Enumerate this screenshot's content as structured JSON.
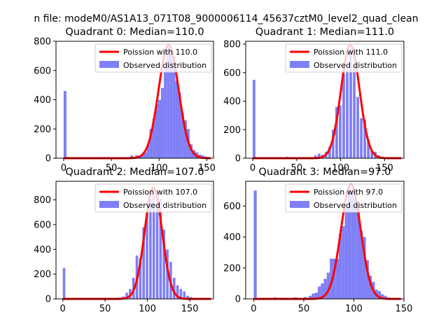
{
  "figure": {
    "title": "n file: modeM0/AS1A13_071T08_9000006114_45637cztM0_level2_quad_clean"
  },
  "colors": {
    "bars": "#7f7ff7",
    "poisson": "#ff0000",
    "axes": "#000000"
  },
  "chart_data": [
    {
      "type": "bar",
      "title": "Quadrant 0: Median=110.0",
      "xlim": [
        -8,
        157
      ],
      "ylim": [
        0,
        800
      ],
      "xticks": [
        0,
        50,
        100,
        150
      ],
      "yticks": [
        0,
        200,
        400,
        600,
        800
      ],
      "legend": {
        "placement": "top-right",
        "line_label": "Poission with 110.0",
        "bar_label": "Observed distribution"
      },
      "poisson_mean": 110.0,
      "poisson_peak": 775,
      "bins": [
        {
          "x": 0,
          "y": 460
        },
        {
          "x": 3,
          "y": 8
        },
        {
          "x": 6,
          "y": 7
        },
        {
          "x": 10,
          "y": 6
        },
        {
          "x": 20,
          "y": 6
        },
        {
          "x": 30,
          "y": 7
        },
        {
          "x": 40,
          "y": 8
        },
        {
          "x": 50,
          "y": 6
        },
        {
          "x": 60,
          "y": 8
        },
        {
          "x": 65,
          "y": 7
        },
        {
          "x": 70,
          "y": 18
        },
        {
          "x": 75,
          "y": 20
        },
        {
          "x": 78,
          "y": 12
        },
        {
          "x": 81,
          "y": 30
        },
        {
          "x": 84,
          "y": 40
        },
        {
          "x": 87,
          "y": 90
        },
        {
          "x": 90,
          "y": 200
        },
        {
          "x": 93,
          "y": 270
        },
        {
          "x": 96,
          "y": 370
        },
        {
          "x": 99,
          "y": 400
        },
        {
          "x": 102,
          "y": 480
        },
        {
          "x": 105,
          "y": 620
        },
        {
          "x": 108,
          "y": 760
        },
        {
          "x": 111,
          "y": 720
        },
        {
          "x": 114,
          "y": 700
        },
        {
          "x": 117,
          "y": 530
        },
        {
          "x": 120,
          "y": 450
        },
        {
          "x": 123,
          "y": 310
        },
        {
          "x": 126,
          "y": 260
        },
        {
          "x": 129,
          "y": 200
        },
        {
          "x": 132,
          "y": 95
        },
        {
          "x": 135,
          "y": 55
        },
        {
          "x": 138,
          "y": 40
        },
        {
          "x": 141,
          "y": 25
        },
        {
          "x": 144,
          "y": 20
        },
        {
          "x": 147,
          "y": 12
        },
        {
          "x": 150,
          "y": 8
        }
      ]
    },
    {
      "type": "bar",
      "title": "Quadrant 1: Median=111.0",
      "xlim": [
        -8,
        172
      ],
      "ylim": [
        0,
        820
      ],
      "xticks": [
        0,
        50,
        100,
        150
      ],
      "yticks": [
        0,
        200,
        400,
        600,
        800
      ],
      "legend": {
        "placement": "top-right",
        "line_label": "Poission with 111.0",
        "bar_label": "Observed distribution"
      },
      "poisson_mean": 111.0,
      "poisson_peak": 795,
      "bins": [
        {
          "x": 0,
          "y": 550
        },
        {
          "x": 3,
          "y": 8
        },
        {
          "x": 10,
          "y": 6
        },
        {
          "x": 20,
          "y": 6
        },
        {
          "x": 30,
          "y": 5
        },
        {
          "x": 38,
          "y": 10
        },
        {
          "x": 45,
          "y": 7
        },
        {
          "x": 55,
          "y": 6
        },
        {
          "x": 65,
          "y": 8
        },
        {
          "x": 70,
          "y": 20
        },
        {
          "x": 74,
          "y": 32
        },
        {
          "x": 78,
          "y": 25
        },
        {
          "x": 82,
          "y": 45
        },
        {
          "x": 86,
          "y": 80
        },
        {
          "x": 90,
          "y": 200
        },
        {
          "x": 94,
          "y": 360
        },
        {
          "x": 98,
          "y": 370
        },
        {
          "x": 102,
          "y": 590
        },
        {
          "x": 106,
          "y": 620
        },
        {
          "x": 110,
          "y": 770
        },
        {
          "x": 114,
          "y": 650
        },
        {
          "x": 118,
          "y": 430
        },
        {
          "x": 122,
          "y": 280
        },
        {
          "x": 126,
          "y": 270
        },
        {
          "x": 130,
          "y": 130
        },
        {
          "x": 134,
          "y": 50
        },
        {
          "x": 138,
          "y": 45
        },
        {
          "x": 142,
          "y": 20
        },
        {
          "x": 146,
          "y": 10
        }
      ]
    },
    {
      "type": "bar",
      "title": "Quadrant 2: Median=107.0",
      "xlim": [
        -8,
        178
      ],
      "ylim": [
        0,
        950
      ],
      "xticks": [
        0,
        50,
        100,
        150
      ],
      "yticks": [
        0,
        200,
        400,
        600,
        800
      ],
      "legend": {
        "placement": "top-right",
        "line_label": "Poission with 107.0",
        "bar_label": "Observed distribution"
      },
      "poisson_mean": 107.0,
      "poisson_peak": 900,
      "bins": [
        {
          "x": 0,
          "y": 250
        },
        {
          "x": 4,
          "y": 8
        },
        {
          "x": 10,
          "y": 6
        },
        {
          "x": 20,
          "y": 5
        },
        {
          "x": 30,
          "y": 6
        },
        {
          "x": 40,
          "y": 7
        },
        {
          "x": 50,
          "y": 6
        },
        {
          "x": 60,
          "y": 8
        },
        {
          "x": 65,
          "y": 10
        },
        {
          "x": 70,
          "y": 20
        },
        {
          "x": 74,
          "y": 50
        },
        {
          "x": 78,
          "y": 80
        },
        {
          "x": 82,
          "y": 170
        },
        {
          "x": 86,
          "y": 350
        },
        {
          "x": 90,
          "y": 330
        },
        {
          "x": 94,
          "y": 580
        },
        {
          "x": 98,
          "y": 690
        },
        {
          "x": 102,
          "y": 810
        },
        {
          "x": 106,
          "y": 840
        },
        {
          "x": 110,
          "y": 770
        },
        {
          "x": 114,
          "y": 810
        },
        {
          "x": 118,
          "y": 560
        },
        {
          "x": 122,
          "y": 400
        },
        {
          "x": 126,
          "y": 300
        },
        {
          "x": 130,
          "y": 170
        },
        {
          "x": 134,
          "y": 110
        },
        {
          "x": 138,
          "y": 80
        },
        {
          "x": 142,
          "y": 60
        },
        {
          "x": 146,
          "y": 25
        },
        {
          "x": 150,
          "y": 15
        },
        {
          "x": 158,
          "y": 8
        }
      ]
    },
    {
      "type": "bar",
      "title": "Quadrant 3: Median=97.0",
      "xlim": [
        -8,
        150
      ],
      "ylim": [
        0,
        760
      ],
      "xticks": [
        0,
        50,
        100,
        150
      ],
      "yticks": [
        0,
        200,
        400,
        600
      ],
      "legend": {
        "placement": "top-right",
        "line_label": "Poission with 97.0",
        "bar_label": "Observed distribution"
      },
      "poisson_mean": 97.0,
      "poisson_peak": 740,
      "bins": [
        {
          "x": 0,
          "y": 700
        },
        {
          "x": 3,
          "y": 5
        },
        {
          "x": 10,
          "y": 7
        },
        {
          "x": 20,
          "y": 10
        },
        {
          "x": 30,
          "y": 8
        },
        {
          "x": 40,
          "y": 10
        },
        {
          "x": 50,
          "y": 12
        },
        {
          "x": 55,
          "y": 20
        },
        {
          "x": 58,
          "y": 35
        },
        {
          "x": 61,
          "y": 40
        },
        {
          "x": 64,
          "y": 80
        },
        {
          "x": 67,
          "y": 100
        },
        {
          "x": 70,
          "y": 130
        },
        {
          "x": 73,
          "y": 170
        },
        {
          "x": 76,
          "y": 260
        },
        {
          "x": 79,
          "y": 260
        },
        {
          "x": 82,
          "y": 260
        },
        {
          "x": 85,
          "y": 420
        },
        {
          "x": 88,
          "y": 470
        },
        {
          "x": 91,
          "y": 600
        },
        {
          "x": 94,
          "y": 720
        },
        {
          "x": 97,
          "y": 700
        },
        {
          "x": 100,
          "y": 650
        },
        {
          "x": 103,
          "y": 600
        },
        {
          "x": 106,
          "y": 440
        },
        {
          "x": 109,
          "y": 400
        },
        {
          "x": 112,
          "y": 250
        },
        {
          "x": 115,
          "y": 150
        },
        {
          "x": 118,
          "y": 110
        },
        {
          "x": 121,
          "y": 60
        },
        {
          "x": 124,
          "y": 50
        },
        {
          "x": 127,
          "y": 30
        },
        {
          "x": 130,
          "y": 20
        },
        {
          "x": 133,
          "y": 10
        }
      ]
    }
  ]
}
